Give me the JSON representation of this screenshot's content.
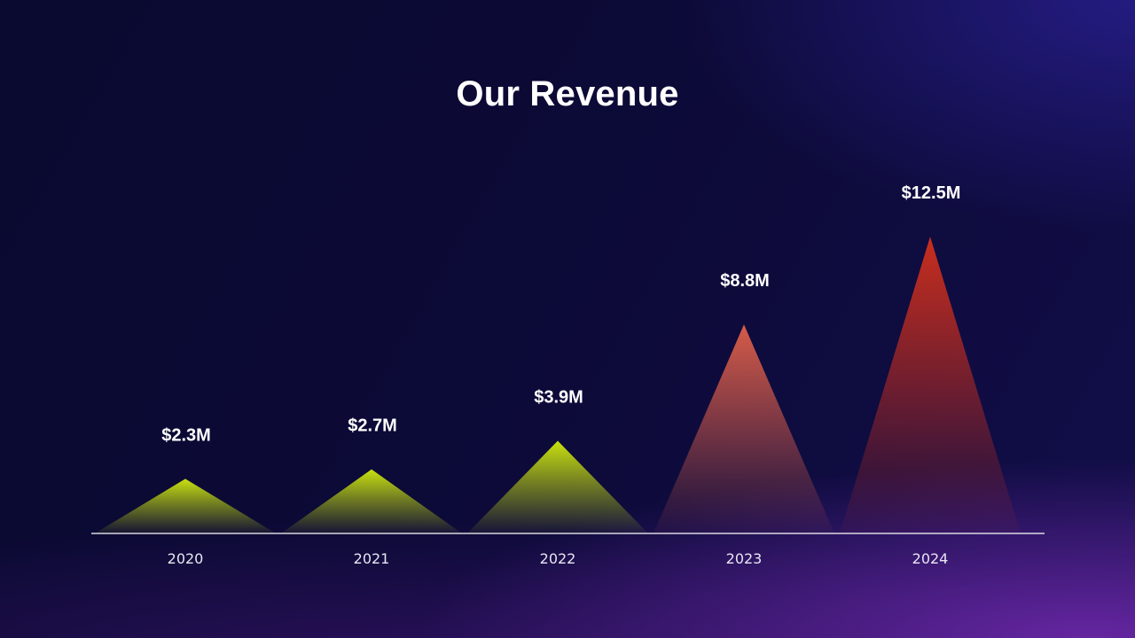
{
  "title": "Our Revenue",
  "colors": {
    "low": "#c8e010",
    "mid": "#e0604a",
    "high": "#d2301c",
    "axis": "#ffffff"
  },
  "chart_data": {
    "type": "bar",
    "shape": "triangle",
    "title": "Our Revenue",
    "xlabel": "",
    "ylabel": "",
    "categories": [
      "2020",
      "2021",
      "2022",
      "2023",
      "2024"
    ],
    "values": [
      2.3,
      2.7,
      3.9,
      8.8,
      12.5
    ],
    "value_labels": [
      "$2.3M",
      "$2.7M",
      "$3.9M",
      "$8.8M",
      "$12.5M"
    ],
    "unit": "$M",
    "grid": false,
    "legend": "none",
    "bar_colors": [
      "#c8e010",
      "#c8e010",
      "#c8e010",
      "#e0604a",
      "#d2301c"
    ]
  }
}
